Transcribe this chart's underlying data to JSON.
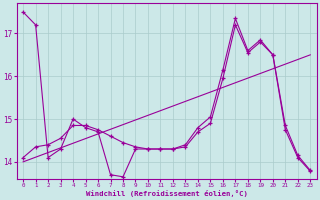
{
  "xlabel": "Windchill (Refroidissement éolien,°C)",
  "bg_color": "#cce8e8",
  "line_color": "#990099",
  "grid_color": "#aacccc",
  "xlim": [
    -0.5,
    23.5
  ],
  "ylim": [
    13.6,
    17.7
  ],
  "yticks": [
    14,
    15,
    16,
    17
  ],
  "xticks": [
    0,
    1,
    2,
    3,
    4,
    5,
    6,
    7,
    8,
    9,
    10,
    11,
    12,
    13,
    14,
    15,
    16,
    17,
    18,
    19,
    20,
    21,
    22,
    23
  ],
  "series_zigzag": [
    17.5,
    17.2,
    14.1,
    14.3,
    15.0,
    14.8,
    14.7,
    13.7,
    13.65,
    14.3,
    14.3,
    14.3,
    14.3,
    14.4,
    14.8,
    15.05,
    16.15,
    17.35,
    16.6,
    16.85,
    16.5,
    14.85,
    14.15,
    13.8
  ],
  "series_smooth": [
    14.1,
    14.35,
    14.4,
    14.55,
    14.85,
    14.85,
    14.75,
    14.6,
    14.45,
    14.35,
    14.3,
    14.3,
    14.3,
    14.35,
    14.7,
    14.9,
    15.95,
    17.2,
    16.55,
    16.8,
    16.5,
    14.75,
    14.1,
    13.78
  ],
  "trend_start": 14.0,
  "trend_end": 16.5
}
